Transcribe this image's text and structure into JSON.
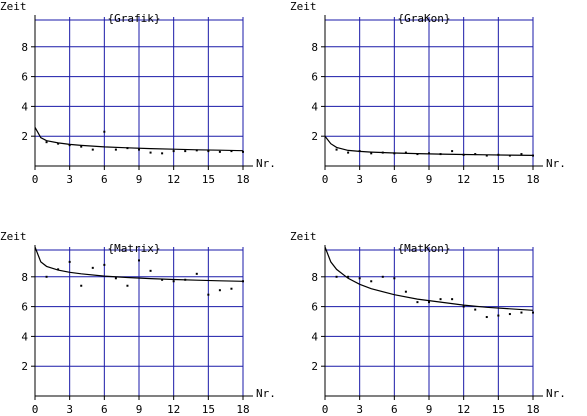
{
  "colors": {
    "grid": "#1a1aa8",
    "axis": "#000000",
    "point": "#000000",
    "curve": "#000000",
    "background": "#ffffff"
  },
  "chart_data": [
    {
      "type": "scatter",
      "title": "{Grafik}",
      "ylabel": "Zeit",
      "xlabel": "Nr.",
      "xlim": [
        0,
        18
      ],
      "ylim": [
        0,
        10
      ],
      "xticks": [
        0,
        3,
        6,
        9,
        12,
        15,
        18
      ],
      "yticks": [
        2,
        4,
        6,
        8
      ],
      "grid": true,
      "points": {
        "x": [
          1,
          2,
          3,
          4,
          5,
          6,
          7,
          8,
          9,
          10,
          11,
          12,
          13,
          14,
          15,
          16,
          17,
          18
        ],
        "y": [
          1.6,
          1.5,
          1.4,
          1.3,
          1.1,
          2.3,
          1.1,
          1.2,
          1.1,
          0.9,
          0.85,
          1.0,
          1.0,
          1.05,
          1.0,
          0.95,
          1.0,
          0.95
        ]
      },
      "fit_curve": {
        "x": [
          0,
          0.5,
          1,
          2,
          3,
          4,
          6,
          8,
          10,
          12,
          14,
          16,
          18
        ],
        "y": [
          2.6,
          1.9,
          1.7,
          1.55,
          1.45,
          1.38,
          1.28,
          1.22,
          1.17,
          1.13,
          1.09,
          1.06,
          1.03
        ]
      }
    },
    {
      "type": "scatter",
      "title": "{GraKon}",
      "ylabel": "Zeit",
      "xlabel": "Nr.",
      "xlim": [
        0,
        18
      ],
      "ylim": [
        0,
        10
      ],
      "xticks": [
        0,
        3,
        6,
        9,
        12,
        15,
        18
      ],
      "yticks": [
        2,
        4,
        6,
        8
      ],
      "grid": true,
      "points": {
        "x": [
          1,
          2,
          3,
          4,
          5,
          6,
          7,
          8,
          9,
          10,
          11,
          12,
          13,
          14,
          15,
          16,
          17,
          18
        ],
        "y": [
          1.1,
          0.9,
          1.0,
          0.85,
          0.9,
          0.85,
          0.9,
          0.8,
          0.85,
          0.8,
          1.0,
          0.75,
          0.8,
          0.7,
          0.75,
          0.7,
          0.8,
          0.7
        ]
      },
      "fit_curve": {
        "x": [
          0,
          0.5,
          1,
          2,
          3,
          4,
          6,
          8,
          10,
          12,
          14,
          16,
          18
        ],
        "y": [
          2.0,
          1.5,
          1.25,
          1.05,
          0.98,
          0.93,
          0.87,
          0.83,
          0.8,
          0.77,
          0.75,
          0.73,
          0.71
        ]
      }
    },
    {
      "type": "scatter",
      "title": "{Matrix}",
      "ylabel": "Zeit",
      "xlabel": "Nr.",
      "xlim": [
        0,
        18
      ],
      "ylim": [
        0,
        10
      ],
      "xticks": [
        0,
        3,
        6,
        9,
        12,
        15,
        18
      ],
      "yticks": [
        2,
        4,
        6,
        8
      ],
      "grid": true,
      "points": {
        "x": [
          1,
          2,
          3,
          4,
          5,
          6,
          7,
          8,
          9,
          10,
          11,
          12,
          13,
          14,
          15,
          16,
          17,
          18
        ],
        "y": [
          8.0,
          8.5,
          9.0,
          7.4,
          8.6,
          8.8,
          7.9,
          7.4,
          9.1,
          8.4,
          7.8,
          7.7,
          7.8,
          8.2,
          6.8,
          7.1,
          7.2,
          7.7
        ]
      },
      "fit_curve": {
        "x": [
          0,
          0.5,
          1,
          2,
          3,
          4,
          6,
          8,
          10,
          12,
          14,
          16,
          18
        ],
        "y": [
          10.0,
          9.0,
          8.7,
          8.45,
          8.3,
          8.2,
          8.05,
          7.95,
          7.88,
          7.82,
          7.77,
          7.73,
          7.7
        ]
      }
    },
    {
      "type": "scatter",
      "title": "{MatKon}",
      "ylabel": "Zeit",
      "xlabel": "Nr.",
      "xlim": [
        0,
        18
      ],
      "ylim": [
        0,
        10
      ],
      "xticks": [
        0,
        3,
        6,
        9,
        12,
        15,
        18
      ],
      "yticks": [
        2,
        4,
        6,
        8
      ],
      "grid": true,
      "points": {
        "x": [
          1,
          2,
          3,
          4,
          5,
          6,
          7,
          8,
          9,
          10,
          11,
          12,
          13,
          14,
          15,
          16,
          17,
          18
        ],
        "y": [
          8.0,
          8.0,
          7.9,
          7.7,
          8.0,
          7.9,
          7.0,
          6.3,
          6.3,
          6.5,
          6.5,
          6.0,
          5.8,
          5.3,
          5.4,
          5.5,
          5.6,
          5.6
        ]
      },
      "fit_curve": {
        "x": [
          0,
          0.5,
          1,
          2,
          3,
          4,
          6,
          8,
          10,
          12,
          14,
          16,
          18
        ],
        "y": [
          10.0,
          9.0,
          8.5,
          7.9,
          7.5,
          7.2,
          6.8,
          6.5,
          6.3,
          6.1,
          5.95,
          5.85,
          5.75
        ]
      }
    }
  ]
}
